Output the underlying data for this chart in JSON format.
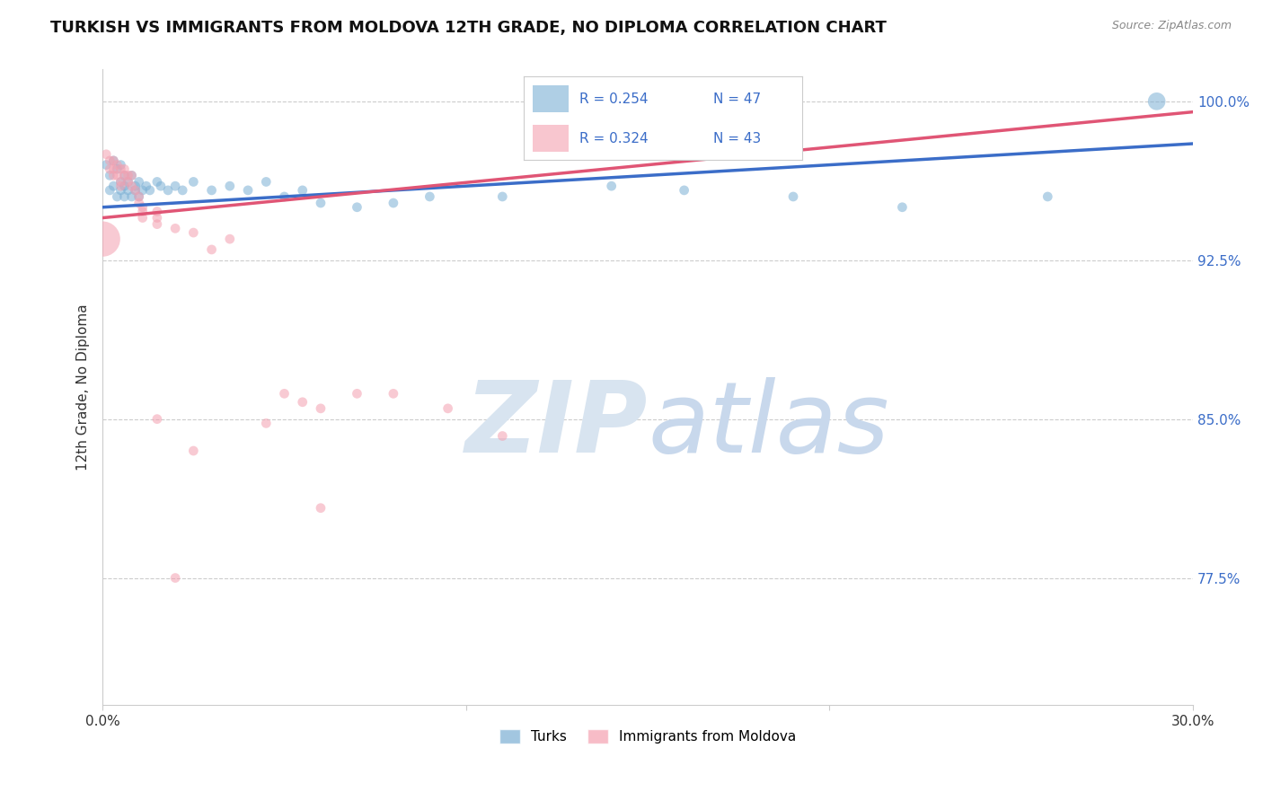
{
  "title": "TURKISH VS IMMIGRANTS FROM MOLDOVA 12TH GRADE, NO DIPLOMA CORRELATION CHART",
  "source": "Source: ZipAtlas.com",
  "ylabel": "12th Grade, No Diploma",
  "xmin": 0.0,
  "xmax": 0.3,
  "ymin": 0.715,
  "ymax": 1.015,
  "yticks": [
    1.0,
    0.925,
    0.85,
    0.775
  ],
  "ytick_labels": [
    "100.0%",
    "92.5%",
    "85.0%",
    "77.5%"
  ],
  "xticks": [
    0.0,
    0.1,
    0.2,
    0.3
  ],
  "xtick_labels": [
    "0.0%",
    "",
    "",
    "30.0%"
  ],
  "legend_blue_R": "R = 0.254",
  "legend_blue_N": "N = 47",
  "legend_pink_R": "R = 0.324",
  "legend_pink_N": "N = 43",
  "legend_blue_label": "Turks",
  "legend_pink_label": "Immigrants from Moldova",
  "blue_color": "#7BAFD4",
  "pink_color": "#F4A0B0",
  "blue_line_color": "#3B6DC8",
  "pink_line_color": "#E05575",
  "blue_scatter": [
    [
      0.001,
      0.97
    ],
    [
      0.002,
      0.965
    ],
    [
      0.002,
      0.958
    ],
    [
      0.003,
      0.972
    ],
    [
      0.003,
      0.96
    ],
    [
      0.004,
      0.968
    ],
    [
      0.004,
      0.955
    ],
    [
      0.005,
      0.962
    ],
    [
      0.005,
      0.958
    ],
    [
      0.005,
      0.97
    ],
    [
      0.006,
      0.96
    ],
    [
      0.006,
      0.955
    ],
    [
      0.006,
      0.965
    ],
    [
      0.007,
      0.962
    ],
    [
      0.007,
      0.958
    ],
    [
      0.008,
      0.965
    ],
    [
      0.008,
      0.955
    ],
    [
      0.009,
      0.96
    ],
    [
      0.009,
      0.958
    ],
    [
      0.01,
      0.962
    ],
    [
      0.01,
      0.955
    ],
    [
      0.011,
      0.958
    ],
    [
      0.012,
      0.96
    ],
    [
      0.013,
      0.958
    ],
    [
      0.015,
      0.962
    ],
    [
      0.016,
      0.96
    ],
    [
      0.018,
      0.958
    ],
    [
      0.02,
      0.96
    ],
    [
      0.022,
      0.958
    ],
    [
      0.025,
      0.962
    ],
    [
      0.03,
      0.958
    ],
    [
      0.035,
      0.96
    ],
    [
      0.04,
      0.958
    ],
    [
      0.045,
      0.962
    ],
    [
      0.05,
      0.955
    ],
    [
      0.055,
      0.958
    ],
    [
      0.06,
      0.952
    ],
    [
      0.07,
      0.95
    ],
    [
      0.08,
      0.952
    ],
    [
      0.09,
      0.955
    ],
    [
      0.11,
      0.955
    ],
    [
      0.14,
      0.96
    ],
    [
      0.16,
      0.958
    ],
    [
      0.19,
      0.955
    ],
    [
      0.22,
      0.95
    ],
    [
      0.26,
      0.955
    ],
    [
      0.29,
      1.0
    ]
  ],
  "pink_scatter": [
    [
      0.0,
      0.935
    ],
    [
      0.001,
      0.975
    ],
    [
      0.002,
      0.968
    ],
    [
      0.002,
      0.972
    ],
    [
      0.003,
      0.965
    ],
    [
      0.003,
      0.968
    ],
    [
      0.003,
      0.972
    ],
    [
      0.004,
      0.97
    ],
    [
      0.004,
      0.965
    ],
    [
      0.005,
      0.968
    ],
    [
      0.005,
      0.962
    ],
    [
      0.005,
      0.96
    ],
    [
      0.006,
      0.965
    ],
    [
      0.006,
      0.968
    ],
    [
      0.007,
      0.965
    ],
    [
      0.007,
      0.962
    ],
    [
      0.008,
      0.96
    ],
    [
      0.008,
      0.965
    ],
    [
      0.009,
      0.958
    ],
    [
      0.01,
      0.955
    ],
    [
      0.01,
      0.952
    ],
    [
      0.011,
      0.948
    ],
    [
      0.011,
      0.945
    ],
    [
      0.011,
      0.95
    ],
    [
      0.015,
      0.942
    ],
    [
      0.015,
      0.945
    ],
    [
      0.015,
      0.948
    ],
    [
      0.02,
      0.94
    ],
    [
      0.025,
      0.938
    ],
    [
      0.03,
      0.93
    ],
    [
      0.035,
      0.935
    ],
    [
      0.05,
      0.862
    ],
    [
      0.055,
      0.858
    ],
    [
      0.06,
      0.855
    ],
    [
      0.07,
      0.862
    ],
    [
      0.08,
      0.862
    ],
    [
      0.095,
      0.855
    ],
    [
      0.11,
      0.842
    ],
    [
      0.045,
      0.848
    ],
    [
      0.015,
      0.85
    ],
    [
      0.02,
      0.775
    ],
    [
      0.025,
      0.835
    ],
    [
      0.06,
      0.808
    ]
  ],
  "blue_scatter_sizes": [
    60,
    60,
    60,
    60,
    60,
    60,
    60,
    60,
    60,
    60,
    60,
    60,
    60,
    60,
    60,
    60,
    60,
    60,
    60,
    60,
    60,
    60,
    60,
    60,
    60,
    60,
    60,
    60,
    60,
    60,
    60,
    60,
    60,
    60,
    60,
    60,
    60,
    60,
    60,
    60,
    60,
    60,
    60,
    60,
    60,
    60,
    200
  ],
  "pink_scatter_sizes": [
    800,
    60,
    60,
    60,
    60,
    60,
    60,
    60,
    60,
    60,
    60,
    60,
    60,
    60,
    60,
    60,
    60,
    60,
    60,
    60,
    60,
    60,
    60,
    60,
    60,
    60,
    60,
    60,
    60,
    60,
    60,
    60,
    60,
    60,
    60,
    60,
    60,
    60,
    60,
    60,
    60,
    60,
    60
  ],
  "grid_color": "#CCCCCC",
  "bg_color": "#FFFFFF",
  "title_fontsize": 13,
  "axis_label_fontsize": 11,
  "tick_fontsize": 11,
  "blue_trend_x": [
    0.0,
    0.3
  ],
  "blue_trend_y": [
    0.95,
    0.98
  ],
  "pink_trend_x": [
    0.0,
    0.3
  ],
  "pink_trend_y": [
    0.945,
    0.995
  ]
}
